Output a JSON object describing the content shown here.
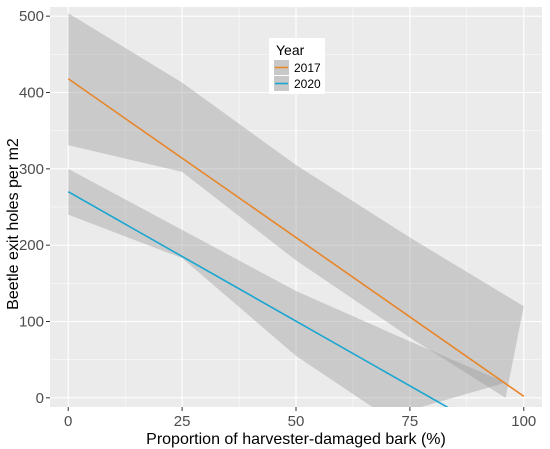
{
  "chart_data": {
    "type": "line",
    "xlabel": "Proportion of harvester-damaged bark (%)",
    "ylabel": "Beetle exit holes per m2",
    "xlim": [
      -4,
      104
    ],
    "ylim": [
      -12,
      512
    ],
    "x_ticks": [
      0,
      25,
      50,
      75,
      100
    ],
    "y_ticks": [
      0,
      100,
      200,
      300,
      400,
      500
    ],
    "grid": true,
    "legend": {
      "title": "Year",
      "position": "top-center"
    },
    "colors": {
      "panel": "#ebebeb",
      "grid": "#ffffff",
      "ribbon": "#999999"
    },
    "series": [
      {
        "name": "2017",
        "color": "#e8862a",
        "line": [
          [
            0,
            418
          ],
          [
            100,
            2
          ]
        ],
        "ribbon_upper": [
          [
            0,
            504
          ],
          [
            25,
            413
          ],
          [
            50,
            305
          ],
          [
            75,
            210
          ],
          [
            100,
            120
          ]
        ],
        "ribbon_lower": [
          [
            0,
            331
          ],
          [
            25,
            296
          ],
          [
            50,
            180
          ],
          [
            75,
            79
          ],
          [
            96,
            0
          ]
        ]
      },
      {
        "name": "2020",
        "color": "#1aa6d1",
        "line": [
          [
            0,
            270
          ],
          [
            87,
            -25
          ]
        ],
        "ribbon_upper": [
          [
            0,
            300
          ],
          [
            25,
            220
          ],
          [
            50,
            140
          ],
          [
            75,
            74
          ],
          [
            96,
            20
          ]
        ],
        "ribbon_lower": [
          [
            0,
            240
          ],
          [
            25,
            183
          ],
          [
            50,
            55
          ],
          [
            70,
            -25
          ]
        ]
      }
    ]
  }
}
